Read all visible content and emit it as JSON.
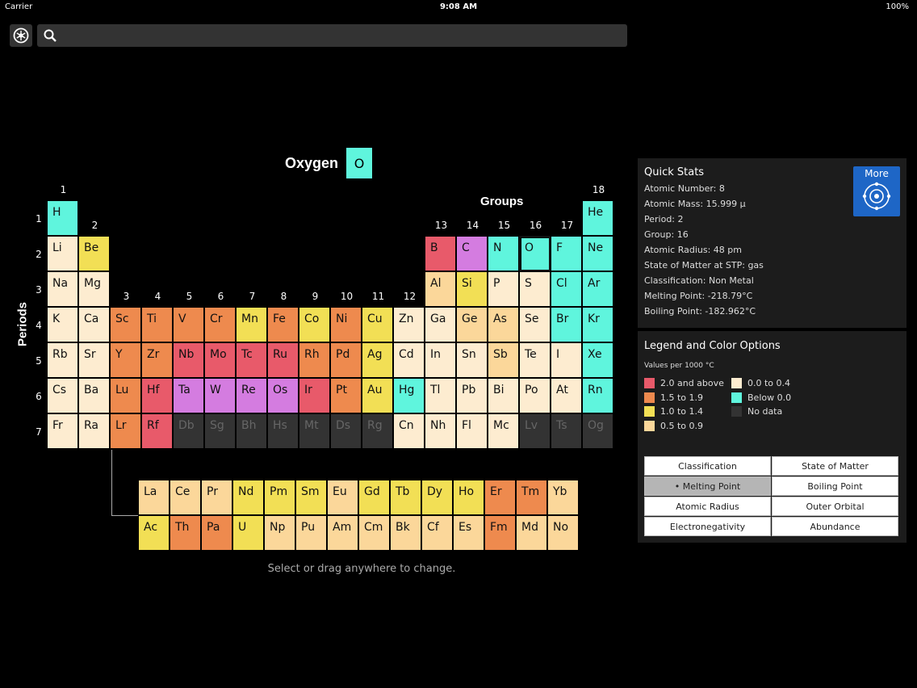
{
  "status": {
    "carrier": "Carrier",
    "time": "9:08 AM",
    "battery": "100%"
  },
  "search": {
    "placeholder": ""
  },
  "selected": {
    "name": "Oxygen",
    "symbol": "O"
  },
  "labels": {
    "groups": "Groups",
    "periods": "Periods"
  },
  "group_numbers": [
    "1",
    "2",
    "3",
    "4",
    "5",
    "6",
    "7",
    "8",
    "9",
    "10",
    "11",
    "12",
    "13",
    "14",
    "15",
    "16",
    "17",
    "18"
  ],
  "period_numbers": [
    "1",
    "2",
    "3",
    "4",
    "5",
    "6",
    "7"
  ],
  "colors": {
    "high": "#e85a6a",
    "mid_high": "#ee8a4e",
    "mid": "#f2df55",
    "mid_low": "#fbd79a",
    "low": "#fdecd0",
    "below": "#5ff5dd",
    "nodata": "#333333",
    "lanthanide_purple": "#d47ce0"
  },
  "elements": [
    {
      "s": "H",
      "c": "below"
    },
    {
      "s": "He",
      "c": "below"
    },
    {
      "s": "Li",
      "c": "low"
    },
    {
      "s": "Be",
      "c": "mid"
    },
    {
      "s": "B",
      "c": "high"
    },
    {
      "s": "C",
      "c": "lanthanide_purple"
    },
    {
      "s": "N",
      "c": "below"
    },
    {
      "s": "O",
      "c": "below"
    },
    {
      "s": "F",
      "c": "below"
    },
    {
      "s": "Ne",
      "c": "below"
    },
    {
      "s": "Na",
      "c": "low"
    },
    {
      "s": "Mg",
      "c": "low"
    },
    {
      "s": "Al",
      "c": "mid_low"
    },
    {
      "s": "Si",
      "c": "mid"
    },
    {
      "s": "P",
      "c": "low"
    },
    {
      "s": "S",
      "c": "low"
    },
    {
      "s": "Cl",
      "c": "below"
    },
    {
      "s": "Ar",
      "c": "below"
    },
    {
      "s": "K",
      "c": "low"
    },
    {
      "s": "Ca",
      "c": "low"
    },
    {
      "s": "Sc",
      "c": "mid_high"
    },
    {
      "s": "Ti",
      "c": "mid_high"
    },
    {
      "s": "V",
      "c": "mid_high"
    },
    {
      "s": "Cr",
      "c": "mid_high"
    },
    {
      "s": "Mn",
      "c": "mid"
    },
    {
      "s": "Fe",
      "c": "mid_high"
    },
    {
      "s": "Co",
      "c": "mid"
    },
    {
      "s": "Ni",
      "c": "mid_high"
    },
    {
      "s": "Cu",
      "c": "mid"
    },
    {
      "s": "Zn",
      "c": "low"
    },
    {
      "s": "Ga",
      "c": "low"
    },
    {
      "s": "Ge",
      "c": "mid_low"
    },
    {
      "s": "As",
      "c": "mid_low"
    },
    {
      "s": "Se",
      "c": "low"
    },
    {
      "s": "Br",
      "c": "below"
    },
    {
      "s": "Kr",
      "c": "below"
    },
    {
      "s": "Rb",
      "c": "low"
    },
    {
      "s": "Sr",
      "c": "low"
    },
    {
      "s": "Y",
      "c": "mid_high"
    },
    {
      "s": "Zr",
      "c": "mid_high"
    },
    {
      "s": "Nb",
      "c": "high"
    },
    {
      "s": "Mo",
      "c": "high"
    },
    {
      "s": "Tc",
      "c": "high"
    },
    {
      "s": "Ru",
      "c": "high"
    },
    {
      "s": "Rh",
      "c": "mid_high"
    },
    {
      "s": "Pd",
      "c": "mid_high"
    },
    {
      "s": "Ag",
      "c": "mid"
    },
    {
      "s": "Cd",
      "c": "low"
    },
    {
      "s": "In",
      "c": "low"
    },
    {
      "s": "Sn",
      "c": "low"
    },
    {
      "s": "Sb",
      "c": "mid_low"
    },
    {
      "s": "Te",
      "c": "low"
    },
    {
      "s": "I",
      "c": "low"
    },
    {
      "s": "Xe",
      "c": "below"
    },
    {
      "s": "Cs",
      "c": "low"
    },
    {
      "s": "Ba",
      "c": "low"
    },
    {
      "s": "Lu",
      "c": "mid_high"
    },
    {
      "s": "Hf",
      "c": "high"
    },
    {
      "s": "Ta",
      "c": "lanthanide_purple"
    },
    {
      "s": "W",
      "c": "lanthanide_purple"
    },
    {
      "s": "Re",
      "c": "lanthanide_purple"
    },
    {
      "s": "Os",
      "c": "lanthanide_purple"
    },
    {
      "s": "Ir",
      "c": "high"
    },
    {
      "s": "Pt",
      "c": "mid_high"
    },
    {
      "s": "Au",
      "c": "mid"
    },
    {
      "s": "Hg",
      "c": "below"
    },
    {
      "s": "Tl",
      "c": "low"
    },
    {
      "s": "Pb",
      "c": "low"
    },
    {
      "s": "Bi",
      "c": "low"
    },
    {
      "s": "Po",
      "c": "low"
    },
    {
      "s": "At",
      "c": "low"
    },
    {
      "s": "Rn",
      "c": "below"
    },
    {
      "s": "Fr",
      "c": "low"
    },
    {
      "s": "Ra",
      "c": "low"
    },
    {
      "s": "Lr",
      "c": "mid_high"
    },
    {
      "s": "Rf",
      "c": "high"
    },
    {
      "s": "Db",
      "c": "nodata"
    },
    {
      "s": "Sg",
      "c": "nodata"
    },
    {
      "s": "Bh",
      "c": "nodata"
    },
    {
      "s": "Hs",
      "c": "nodata"
    },
    {
      "s": "Mt",
      "c": "nodata"
    },
    {
      "s": "Ds",
      "c": "nodata"
    },
    {
      "s": "Rg",
      "c": "nodata"
    },
    {
      "s": "Cn",
      "c": "low"
    },
    {
      "s": "Nh",
      "c": "low"
    },
    {
      "s": "Fl",
      "c": "low"
    },
    {
      "s": "Mc",
      "c": "low"
    },
    {
      "s": "Lv",
      "c": "nodata"
    },
    {
      "s": "Ts",
      "c": "nodata"
    },
    {
      "s": "Og",
      "c": "nodata"
    }
  ],
  "lanthanides": [
    {
      "s": "La",
      "c": "mid_low"
    },
    {
      "s": "Ce",
      "c": "mid_low"
    },
    {
      "s": "Pr",
      "c": "mid_low"
    },
    {
      "s": "Nd",
      "c": "mid"
    },
    {
      "s": "Pm",
      "c": "mid"
    },
    {
      "s": "Sm",
      "c": "mid"
    },
    {
      "s": "Eu",
      "c": "mid_low"
    },
    {
      "s": "Gd",
      "c": "mid"
    },
    {
      "s": "Tb",
      "c": "mid"
    },
    {
      "s": "Dy",
      "c": "mid"
    },
    {
      "s": "Ho",
      "c": "mid"
    },
    {
      "s": "Er",
      "c": "mid_high"
    },
    {
      "s": "Tm",
      "c": "mid_high"
    },
    {
      "s": "Yb",
      "c": "mid_low"
    }
  ],
  "actinides": [
    {
      "s": "Ac",
      "c": "mid"
    },
    {
      "s": "Th",
      "c": "mid_high"
    },
    {
      "s": "Pa",
      "c": "mid_high"
    },
    {
      "s": "U",
      "c": "mid"
    },
    {
      "s": "Np",
      "c": "mid_low"
    },
    {
      "s": "Pu",
      "c": "mid_low"
    },
    {
      "s": "Am",
      "c": "mid_low"
    },
    {
      "s": "Cm",
      "c": "mid_low"
    },
    {
      "s": "Bk",
      "c": "mid_low"
    },
    {
      "s": "Cf",
      "c": "mid_low"
    },
    {
      "s": "Es",
      "c": "mid_low"
    },
    {
      "s": "Fm",
      "c": "mid_high"
    },
    {
      "s": "Md",
      "c": "mid_low"
    },
    {
      "s": "No",
      "c": "mid_low"
    }
  ],
  "hint": "Select or drag anywhere to change.",
  "quick_stats": {
    "title": "Quick Stats",
    "more_label": "More",
    "rows": [
      "Atomic Number: 8",
      "Atomic Mass: 15.999 μ",
      "Period: 2",
      "Group: 16",
      "Atomic Radius: 48 pm",
      "State of Matter at STP: gas",
      "Classification: Non Metal",
      "Melting Point: -218.79°C",
      "Boiling Point: -182.962°C"
    ]
  },
  "legend": {
    "title": "Legend and Color Options",
    "subtitle": "Values per 1000 °C",
    "items": [
      {
        "label": "2.0 and above",
        "c": "high"
      },
      {
        "label": "1.5 to 1.9",
        "c": "mid_high"
      },
      {
        "label": "1.0 to 1.4",
        "c": "mid"
      },
      {
        "label": "0.5 to 0.9",
        "c": "mid_low"
      },
      {
        "label": "0.0 to 0.4",
        "c": "low"
      },
      {
        "label": "Below 0.0",
        "c": "below"
      },
      {
        "label": "No data",
        "c": "nodata"
      }
    ],
    "options": [
      {
        "label": "Classification",
        "active": false
      },
      {
        "label": "State of Matter",
        "active": false
      },
      {
        "label": "• Melting Point",
        "active": true
      },
      {
        "label": "Boiling Point",
        "active": false
      },
      {
        "label": "Atomic Radius",
        "active": false
      },
      {
        "label": "Outer Orbital",
        "active": false
      },
      {
        "label": "Electronegativity",
        "active": false
      },
      {
        "label": "Abundance",
        "active": false
      }
    ]
  }
}
